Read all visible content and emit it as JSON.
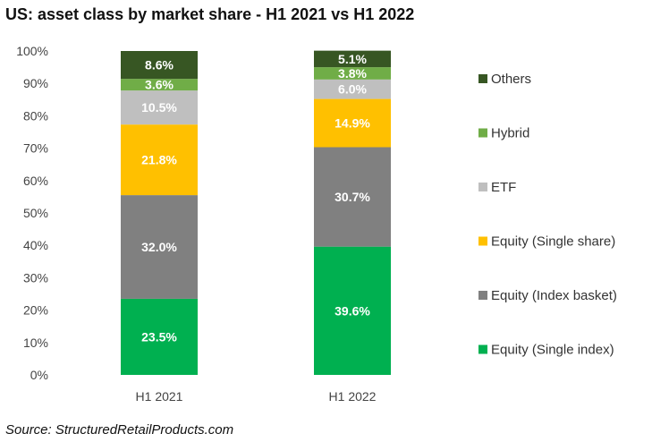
{
  "chart_data": {
    "type": "bar",
    "stacked": true,
    "title": "US: asset class by market share - H1 2021 vs H1 2022",
    "categories": [
      "H1 2021",
      "H1 2022"
    ],
    "ylim": [
      0,
      100
    ],
    "yticks": [
      "0%",
      "10%",
      "20%",
      "30%",
      "40%",
      "50%",
      "60%",
      "70%",
      "80%",
      "90%",
      "100%"
    ],
    "grid": false,
    "legend_position": "right",
    "series": [
      {
        "name": "Equity (Single index)",
        "color": "#00b050",
        "values": [
          23.5,
          39.6
        ],
        "labels": [
          "23.5%",
          "39.6%"
        ]
      },
      {
        "name": "Equity (Index basket)",
        "color": "#808080",
        "values": [
          32.0,
          30.7
        ],
        "labels": [
          "32.0%",
          "30.7%"
        ]
      },
      {
        "name": "Equity (Single share)",
        "color": "#ffc000",
        "values": [
          21.8,
          14.9
        ],
        "labels": [
          "21.8%",
          "14.9%"
        ]
      },
      {
        "name": "ETF",
        "color": "#bfbfbf",
        "values": [
          10.5,
          6.0
        ],
        "labels": [
          "10.5%",
          "6.0%"
        ]
      },
      {
        "name": "Hybrid",
        "color": "#70ad47",
        "values": [
          3.6,
          3.8
        ],
        "labels": [
          "3.6%",
          "3.8%"
        ]
      },
      {
        "name": "Others",
        "color": "#375623",
        "values": [
          8.6,
          5.1
        ],
        "labels": [
          "8.6%",
          "5.1%"
        ]
      }
    ],
    "source": "Source: StructuredRetailProducts.com"
  }
}
